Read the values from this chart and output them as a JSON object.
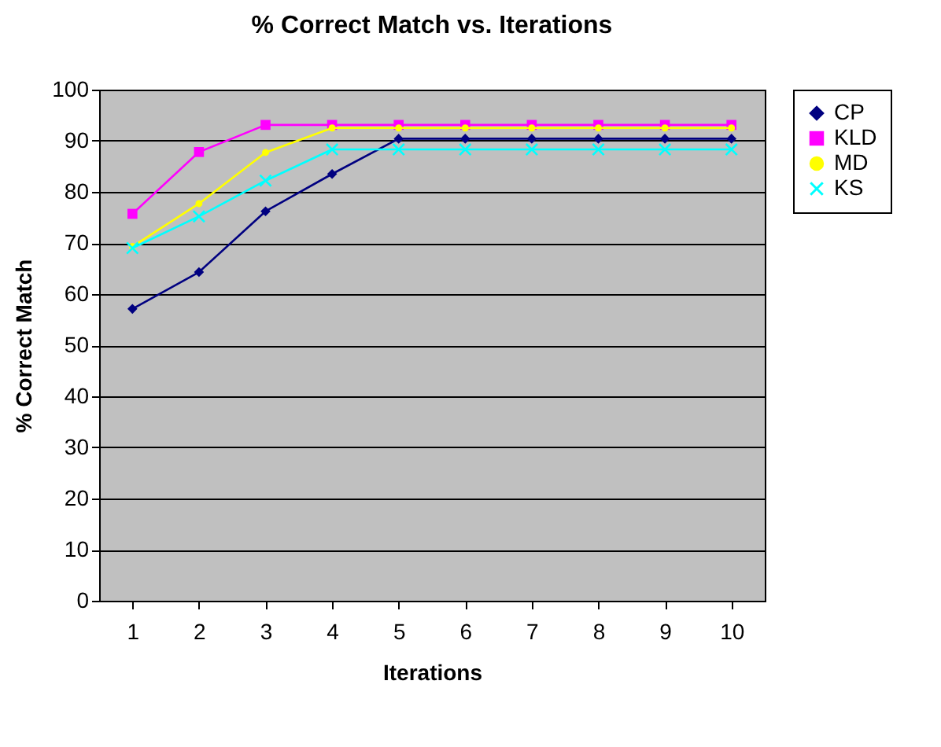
{
  "chart_data": {
    "type": "line",
    "title": "% Correct Match vs. Iterations",
    "xlabel": "Iterations",
    "ylabel": "% Correct Match",
    "categories": [
      "1",
      "2",
      "3",
      "4",
      "5",
      "6",
      "7",
      "8",
      "9",
      "10"
    ],
    "series": [
      {
        "name": "CP",
        "color": "#000080",
        "marker": "diamond",
        "values": [
          57.1,
          64.3,
          76.2,
          83.5,
          90.4,
          90.4,
          90.4,
          90.4,
          90.4,
          90.4
        ]
      },
      {
        "name": "KLD",
        "color": "#ff00ff",
        "marker": "square",
        "values": [
          75.7,
          87.8,
          93.1,
          93.1,
          93.1,
          93.1,
          93.1,
          93.1,
          93.1,
          93.1
        ]
      },
      {
        "name": "MD",
        "color": "#ffff00",
        "marker": "circle",
        "values": [
          69.3,
          77.7,
          87.7,
          92.5,
          92.5,
          92.5,
          92.5,
          92.5,
          92.5,
          92.5
        ]
      },
      {
        "name": "KS",
        "color": "#00ffff",
        "marker": "cross",
        "values": [
          69,
          75.2,
          82.2,
          88.3,
          88.3,
          88.3,
          88.3,
          88.3,
          88.3,
          88.3
        ]
      }
    ],
    "ylim": [
      0,
      100
    ],
    "yticks": [
      0,
      10,
      20,
      30,
      40,
      50,
      60,
      70,
      80,
      90,
      100
    ],
    "grid": "y",
    "legend": "right",
    "line_style": "solid"
  }
}
